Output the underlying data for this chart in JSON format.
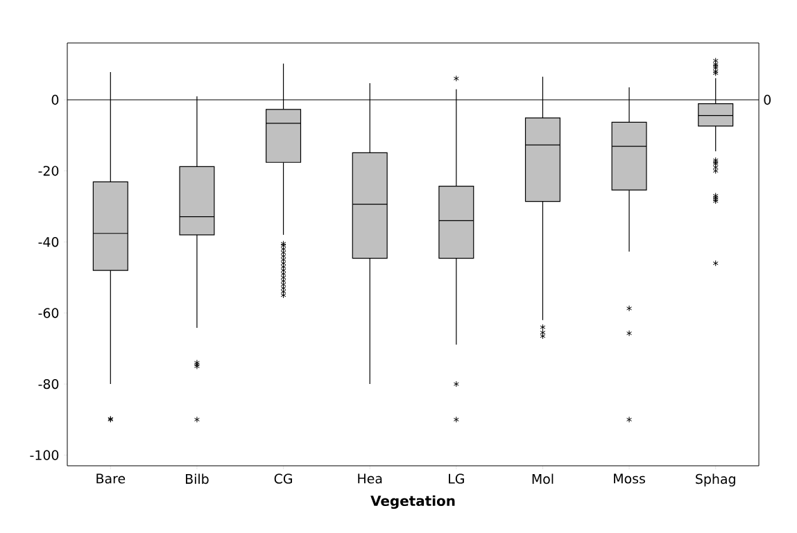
{
  "chart_data": {
    "type": "box",
    "xlabel": "Vegetation",
    "categories": [
      "Bare",
      "Bilb",
      "CG",
      "Hea",
      "LG",
      "Mol",
      "Moss",
      "Sphag"
    ],
    "color": "#c0c0c0",
    "marker": "star",
    "boxes": [
      {
        "low": -80,
        "q1": -48,
        "median": -37.6,
        "q3": -23.1,
        "high": 7.8,
        "outliers": [
          -90,
          -89.8
        ]
      },
      {
        "low": -64.2,
        "q1": -38,
        "median": -32.9,
        "q3": -18.8,
        "high": 1,
        "outliers": [
          -74,
          -74.5,
          -75,
          -90
        ]
      },
      {
        "low": -38,
        "q1": -17.6,
        "median": -6.6,
        "q3": -2.7,
        "high": 10.2,
        "outliers": [
          -40.5,
          -41,
          -42,
          -43,
          -44,
          -45,
          -46,
          -47,
          -48,
          -49,
          -50,
          -51,
          -52,
          -53,
          -54,
          -55
        ]
      },
      {
        "low": -80,
        "q1": -44.6,
        "median": -29.4,
        "q3": -14.9,
        "high": 4.7
      },
      {
        "low": -68.9,
        "q1": -44.6,
        "median": -34,
        "q3": -24.3,
        "high": 3,
        "outliers": [
          6,
          -80,
          -90
        ]
      },
      {
        "low": -62,
        "q1": -28.6,
        "median": -12.7,
        "q3": -5.1,
        "high": 6.5,
        "outliers": [
          -64,
          -65.5,
          -66.5
        ]
      },
      {
        "low": -42.7,
        "q1": -25.4,
        "median": -13.1,
        "q3": -6.3,
        "high": 3.5,
        "outliers": [
          -58.7,
          -65.7,
          -90
        ]
      },
      {
        "low": -14.5,
        "q1": -7.4,
        "median": -4.4,
        "q3": -1.1,
        "high": 6.1,
        "outliers": [
          11,
          10,
          9.5,
          9,
          8,
          7.5,
          -17,
          -17.5,
          -18,
          -19,
          -20,
          -27,
          -27.5,
          -28,
          -28.5,
          -46
        ]
      }
    ],
    "ylim": [
      -103,
      16
    ],
    "yticks": [
      -100,
      -80,
      -60,
      -40,
      -20,
      0
    ],
    "ref_lines": [
      {
        "axis": "y",
        "value": 0,
        "label": "0"
      }
    ]
  }
}
